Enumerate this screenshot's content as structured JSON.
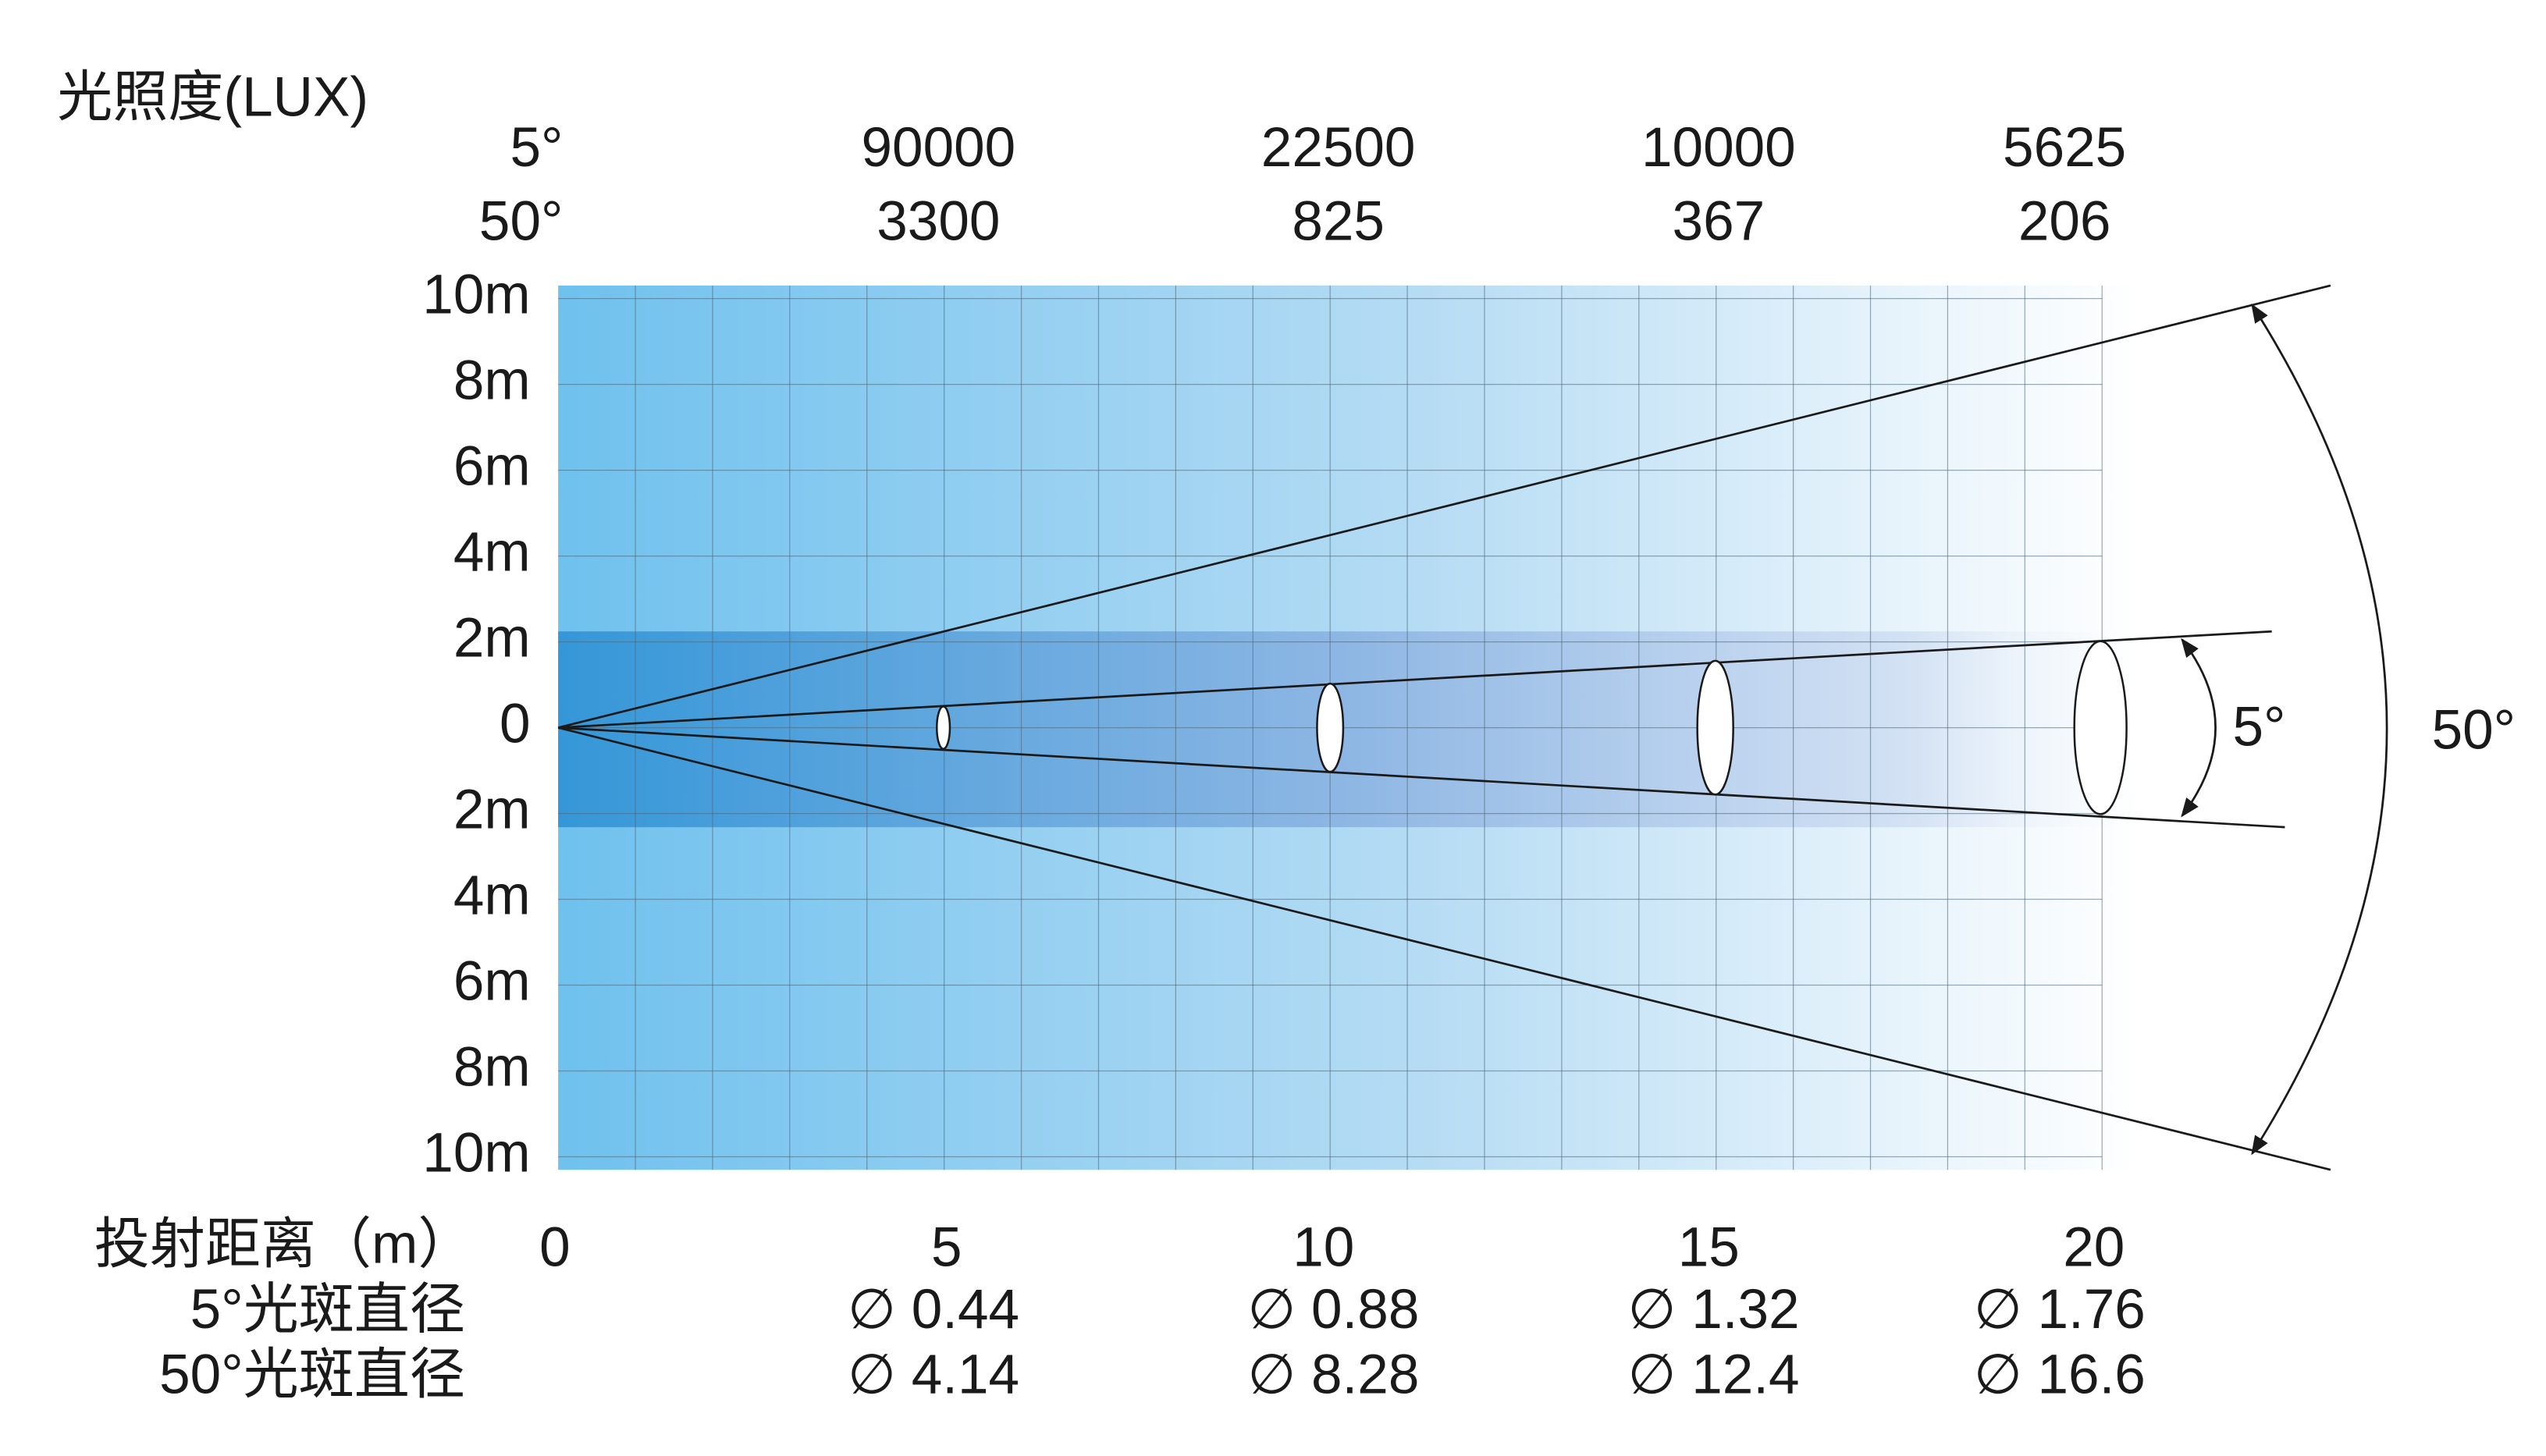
{
  "title": "光照度(LUX)",
  "illuminance": [
    {
      "label": "5°",
      "values": [
        90000,
        22500,
        10000,
        5625
      ]
    },
    {
      "label": "50°",
      "values": [
        3300,
        825,
        367,
        206
      ]
    }
  ],
  "y_labels": [
    "10m",
    "8m",
    "6m",
    "4m",
    "2m",
    "0",
    "2m",
    "4m",
    "6m",
    "8m",
    "10m"
  ],
  "distance": {
    "label": "投射距离（m）",
    "values": [
      0,
      5,
      10,
      15,
      20
    ]
  },
  "spot": [
    {
      "label": "5°光斑直径",
      "values": [
        "∅ 0.44",
        "∅ 0.88",
        "∅ 1.32",
        "∅ 1.76"
      ]
    },
    {
      "label": "50°光斑直径",
      "values": [
        "∅ 4.14",
        "∅ 8.28",
        "∅ 12.4",
        "∅ 16.6"
      ]
    }
  ],
  "angles": {
    "narrow": "5°",
    "wide": "50°"
  }
}
